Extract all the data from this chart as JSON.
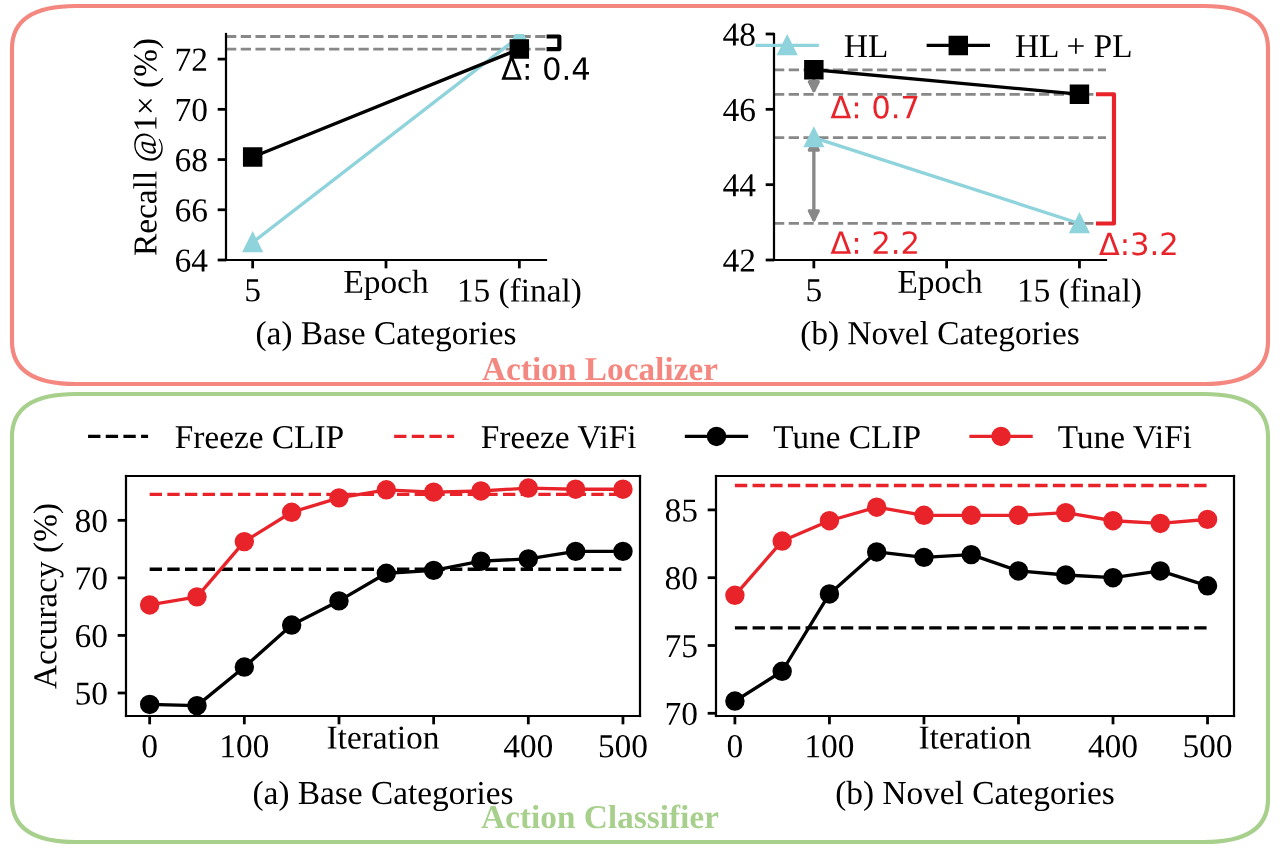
{
  "chart_data": [
    {
      "type": "line",
      "subtitle": "Action Localizer",
      "title": "(a) Base Categories",
      "xlabel": "Epoch",
      "ylabel": "Recall @1× (%)",
      "x": [
        5,
        15
      ],
      "xlim": [
        4,
        16
      ],
      "xticks": [
        5,
        {
          "value": 10,
          "label": null
        },
        {
          "value": 15,
          "label": "15 (final)"
        }
      ],
      "ylim": [
        64,
        73
      ],
      "yticks": [
        64,
        66,
        68,
        70,
        72
      ],
      "grid": false,
      "legend": false,
      "series": [
        {
          "color": "#8fd3dc",
          "marker": "triangle",
          "values": [
            64.7,
            72.9
          ]
        },
        {
          "color": "#000000",
          "marker": "square",
          "values": [
            68.1,
            72.4
          ]
        }
      ],
      "ref_lines": [
        {
          "axis": "y",
          "value": 72.9,
          "color": "#888888",
          "line_style": "dashed"
        },
        {
          "axis": "y",
          "value": 72.4,
          "color": "#888888",
          "line_style": "dashed"
        }
      ],
      "annotations": [
        "Δ: 0.4"
      ]
    },
    {
      "type": "line",
      "title": "(b) Novel Categories",
      "xlabel": "Epoch",
      "x": [
        5,
        15
      ],
      "xlim": [
        3.5,
        16
      ],
      "xticks": [
        5,
        {
          "value": 10,
          "label": null
        },
        {
          "value": 15,
          "label": "15 (final)"
        }
      ],
      "ylim": [
        42,
        48
      ],
      "yticks": [
        42,
        44,
        46,
        48
      ],
      "grid": false,
      "legend": "top right",
      "series": [
        {
          "name": "HL",
          "color": "#8fd3dc",
          "marker": "triangle",
          "values": [
            45.25,
            42.97
          ]
        },
        {
          "name": "HL + PL",
          "color": "#000000",
          "marker": "square",
          "values": [
            47.05,
            46.4
          ]
        }
      ],
      "ref_lines": [
        {
          "axis": "y",
          "value": 47.05,
          "color": "#888888",
          "line_style": "dashed"
        },
        {
          "axis": "y",
          "value": 46.4,
          "color": "#888888",
          "line_style": "dashed"
        },
        {
          "axis": "y",
          "value": 45.25,
          "color": "#888888",
          "line_style": "dashed"
        },
        {
          "axis": "y",
          "value": 42.97,
          "color": "#888888",
          "line_style": "dashed"
        }
      ],
      "annotations": [
        "Δ: 0.7",
        "Δ: 2.2",
        {
          "text": "Δ:3.2",
          "x": 15,
          "y": 42.97
        }
      ]
    },
    {
      "type": "line",
      "subtitle": "Action Classifier",
      "title": "(a) Base Categories",
      "xlabel": "Iteration",
      "ylabel": "Accuracy (%)",
      "x": [
        0,
        50,
        100,
        150,
        200,
        250,
        300,
        350,
        400,
        450,
        500
      ],
      "xlim": [
        -25,
        518
      ],
      "xticks": [
        0,
        100,
        {
          "value": 200,
          "label": null
        },
        {
          "value": 300,
          "label": null
        },
        400,
        500
      ],
      "ylim": [
        46,
        87.7
      ],
      "yticks": [
        50,
        60,
        70,
        80
      ],
      "grid": false,
      "legend": "top",
      "series": [
        {
          "name": "Freeze CLIP",
          "color": "#000000",
          "marker": "none",
          "line_style": "dashed",
          "values": [
            71.5,
            71.5,
            71.5,
            71.5,
            71.5,
            71.5,
            71.5,
            71.5,
            71.5,
            71.5,
            71.5
          ]
        },
        {
          "name": "Freeze ViFi",
          "color": "#e8232a",
          "marker": "none",
          "line_style": "dashed",
          "values": [
            84.5,
            84.5,
            84.5,
            84.5,
            84.5,
            84.5,
            84.5,
            84.5,
            84.5,
            84.5,
            84.5
          ]
        },
        {
          "name": "Tune CLIP",
          "color": "#000000",
          "marker": "circle",
          "values": [
            48.0,
            47.8,
            54.5,
            61.8,
            66.0,
            70.8,
            71.3,
            72.9,
            73.3,
            74.6,
            74.6
          ]
        },
        {
          "name": "Tune ViFi",
          "color": "#e8232a",
          "marker": "circle",
          "values": [
            65.3,
            66.7,
            76.3,
            81.4,
            83.9,
            85.3,
            84.9,
            85.1,
            85.6,
            85.4,
            85.4
          ]
        }
      ]
    },
    {
      "type": "line",
      "title": "(b) Novel Categories",
      "xlabel": "Iteration",
      "x": [
        0,
        50,
        100,
        150,
        200,
        250,
        300,
        350,
        400,
        450,
        500
      ],
      "xlim": [
        -20,
        528
      ],
      "xticks": [
        0,
        100,
        {
          "value": 200,
          "label": null
        },
        {
          "value": 300,
          "label": null
        },
        400,
        500
      ],
      "ylim": [
        69.8,
        87.5
      ],
      "yticks": [
        70,
        75,
        80,
        85
      ],
      "grid": false,
      "legend": false,
      "series": [
        {
          "color": "#000000",
          "marker": "none",
          "line_style": "dashed",
          "values": [
            76.3,
            76.3,
            76.3,
            76.3,
            76.3,
            76.3,
            76.3,
            76.3,
            76.3,
            76.3,
            76.3
          ]
        },
        {
          "color": "#e8232a",
          "marker": "none",
          "line_style": "dashed",
          "values": [
            86.8,
            86.8,
            86.8,
            86.8,
            86.8,
            86.8,
            86.8,
            86.8,
            86.8,
            86.8,
            86.8
          ]
        },
        {
          "color": "#000000",
          "marker": "circle",
          "values": [
            70.9,
            73.1,
            78.8,
            81.9,
            81.5,
            81.7,
            80.5,
            80.2,
            80.0,
            80.5,
            79.4
          ]
        },
        {
          "color": "#e8232a",
          "marker": "circle",
          "values": [
            78.7,
            82.7,
            84.2,
            85.2,
            84.6,
            84.6,
            84.6,
            84.8,
            84.2,
            84.0,
            84.3
          ]
        }
      ]
    }
  ]
}
